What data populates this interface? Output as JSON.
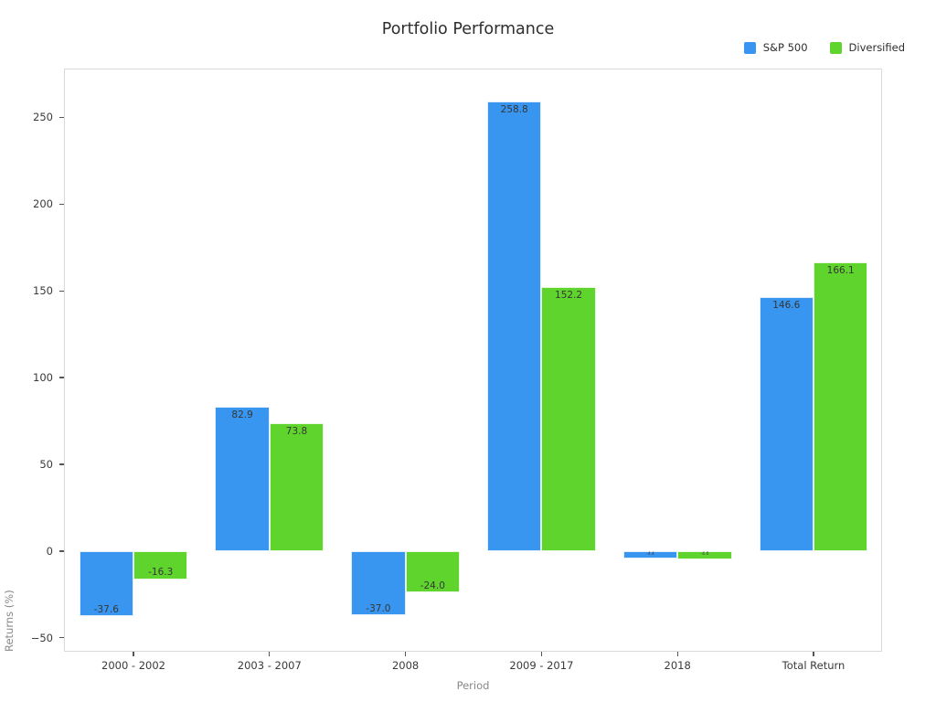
{
  "title": "Portfolio Performance",
  "chart_data": {
    "type": "bar",
    "title": "Portfolio Performance",
    "xlabel": "Period",
    "ylabel": "Returns (%)",
    "categories": [
      "2000 - 2002",
      "2003 - 2007",
      "2008",
      "2009 - 2017",
      "2018",
      "Total Return"
    ],
    "series": [
      {
        "name": "S&P 500",
        "color": "#3896F0",
        "values": [
          -37.6,
          82.9,
          -37.0,
          258.8,
          -4.4,
          146.6
        ],
        "labels": [
          "-37.6",
          "82.9",
          "-37.0",
          "258.8",
          "-4.4",
          "146.6"
        ]
      },
      {
        "name": "Diversified",
        "color": "#5FD42C",
        "values": [
          -16.3,
          73.8,
          -24.0,
          152.2,
          -4.6,
          166.1
        ],
        "labels": [
          "-16.3",
          "73.8",
          "-24.0",
          "152.2",
          "-4.6",
          "166.1"
        ]
      }
    ],
    "ylim": [
      -58,
      278
    ],
    "yticks": [
      {
        "value": -50,
        "label": "−50"
      },
      {
        "value": 0,
        "label": "0"
      },
      {
        "value": 50,
        "label": "50"
      },
      {
        "value": 100,
        "label": "100"
      },
      {
        "value": 150,
        "label": "150"
      },
      {
        "value": 200,
        "label": "200"
      },
      {
        "value": 250,
        "label": "250"
      }
    ],
    "grid": false,
    "legend_position": "top-right"
  }
}
